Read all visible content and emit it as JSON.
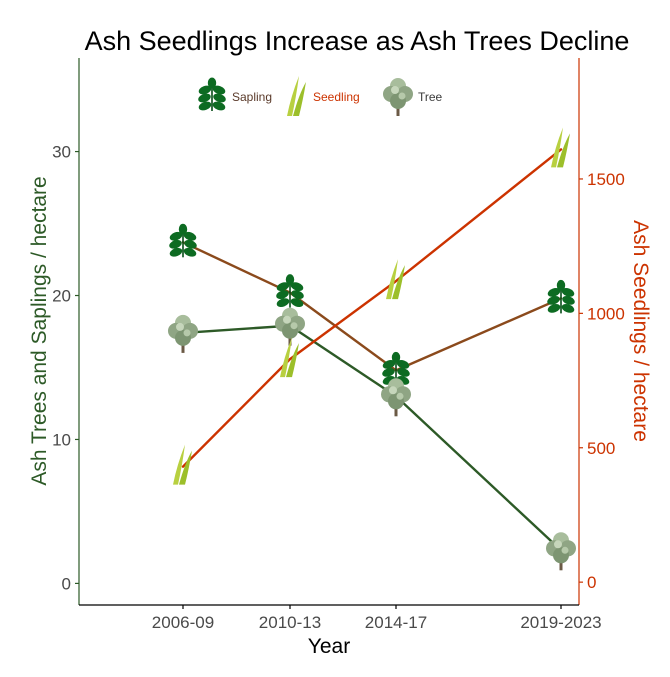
{
  "chart_data": {
    "type": "line",
    "title": "Ash Seedlings Increase as Ash Trees Decline",
    "xlabel": "Year",
    "ylabel_left": "Ash Trees and Saplings / hectare",
    "ylabel_right": "Ash Seedlings / hectare",
    "categories": [
      "2006-09",
      "2010-13",
      "2014-17",
      "2019-2023"
    ],
    "ylim_left": [
      -1.5,
      36.5
    ],
    "ylim_right": [
      -85,
      1950
    ],
    "yticks_left": [
      0,
      10,
      20,
      30
    ],
    "yticks_right": [
      0,
      500,
      1000,
      1500
    ],
    "series": [
      {
        "name": "Sapling",
        "axis": "left",
        "color": "#8b4a1c",
        "values": [
          23.7,
          20.2,
          14.8,
          19.8
        ],
        "icon": "sapling-leaf-icon"
      },
      {
        "name": "Tree",
        "axis": "left",
        "color": "#2d5a27",
        "values": [
          17.4,
          17.9,
          13.0,
          2.3
        ],
        "icon": "tree-icon"
      },
      {
        "name": "Seedling",
        "axis": "right",
        "color": "#cc3300",
        "values": [
          430,
          830,
          1120,
          1610
        ],
        "icon": "seedling-blade-icon"
      }
    ],
    "legend": {
      "position": "top-center",
      "items": [
        {
          "label": "Sapling",
          "color": "#5a3a2a",
          "icon": "sapling-leaf-icon"
        },
        {
          "label": "Seedling",
          "color": "#cc3300",
          "icon": "seedling-blade-icon"
        },
        {
          "label": "Tree",
          "color": "#3a3a3a",
          "icon": "tree-icon"
        }
      ]
    },
    "colors": {
      "left_axis": "#2d5a27",
      "right_axis": "#cc3300",
      "leaf": "#0d6b22",
      "blade": "#b8d040",
      "tree": "#8fa584"
    },
    "grid": false
  }
}
